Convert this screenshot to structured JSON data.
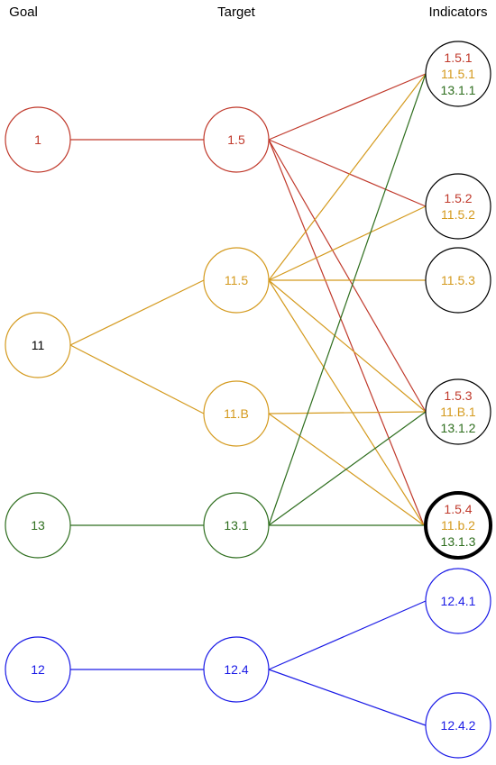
{
  "headers": {
    "goal": "Goal",
    "target": "Target",
    "indicators": "Indicators"
  },
  "colors": {
    "red": "#c0392b",
    "orange": "#d49a1e",
    "green": "#2e6e1e",
    "blue": "#1a1ae6",
    "black": "#000000"
  },
  "goals": [
    {
      "id": "g1",
      "label": "1",
      "color": "#c0392b",
      "text_color": "#c0392b"
    },
    {
      "id": "g11",
      "label": "11",
      "color": "#d49a1e",
      "text_color": "#000000"
    },
    {
      "id": "g13",
      "label": "13",
      "color": "#2e6e1e",
      "text_color": "#2e6e1e"
    },
    {
      "id": "g12",
      "label": "12",
      "color": "#1a1ae6",
      "text_color": "#1a1ae6"
    }
  ],
  "targets": [
    {
      "id": "t1_5",
      "label": "1.5",
      "color": "#c0392b"
    },
    {
      "id": "t11_5",
      "label": "11.5",
      "color": "#d49a1e"
    },
    {
      "id": "t11_B",
      "label": "11.B",
      "color": "#d49a1e"
    },
    {
      "id": "t13_1",
      "label": "13.1",
      "color": "#2e6e1e"
    },
    {
      "id": "t12_4",
      "label": "12.4",
      "color": "#1a1ae6"
    }
  ],
  "indicators": [
    {
      "id": "i1",
      "border": "#000000",
      "bold": false,
      "lines": [
        {
          "text": "1.5.1",
          "color": "#c0392b"
        },
        {
          "text": "11.5.1",
          "color": "#d49a1e"
        },
        {
          "text": "13.1.1",
          "color": "#2e6e1e"
        }
      ]
    },
    {
      "id": "i2",
      "border": "#000000",
      "bold": false,
      "lines": [
        {
          "text": "1.5.2",
          "color": "#c0392b"
        },
        {
          "text": "11.5.2",
          "color": "#d49a1e"
        }
      ]
    },
    {
      "id": "i3",
      "border": "#000000",
      "bold": false,
      "lines": [
        {
          "text": "11.5.3",
          "color": "#d49a1e"
        }
      ]
    },
    {
      "id": "i4",
      "border": "#000000",
      "bold": false,
      "lines": [
        {
          "text": "1.5.3",
          "color": "#c0392b"
        },
        {
          "text": "11.B.1",
          "color": "#d49a1e"
        },
        {
          "text": "13.1.2",
          "color": "#2e6e1e"
        }
      ]
    },
    {
      "id": "i5",
      "border": "#000000",
      "bold": true,
      "lines": [
        {
          "text": "1.5.4",
          "color": "#c0392b"
        },
        {
          "text": "11.b.2",
          "color": "#d49a1e"
        },
        {
          "text": "13.1.3",
          "color": "#2e6e1e"
        }
      ]
    },
    {
      "id": "i6",
      "border": "#1a1ae6",
      "bold": false,
      "lines": [
        {
          "text": "12.4.1",
          "color": "#1a1ae6"
        }
      ]
    },
    {
      "id": "i7",
      "border": "#1a1ae6",
      "bold": false,
      "lines": [
        {
          "text": "12.4.2",
          "color": "#1a1ae6"
        }
      ]
    }
  ],
  "edges": [
    {
      "from": "g1",
      "to": "t1_5",
      "color": "#c0392b"
    },
    {
      "from": "g11",
      "to": "t11_5",
      "color": "#d49a1e"
    },
    {
      "from": "g11",
      "to": "t11_B",
      "color": "#d49a1e"
    },
    {
      "from": "g13",
      "to": "t13_1",
      "color": "#2e6e1e"
    },
    {
      "from": "g12",
      "to": "t12_4",
      "color": "#1a1ae6"
    },
    {
      "from": "t1_5",
      "to": "i1",
      "color": "#c0392b"
    },
    {
      "from": "t1_5",
      "to": "i2",
      "color": "#c0392b"
    },
    {
      "from": "t1_5",
      "to": "i4",
      "color": "#c0392b"
    },
    {
      "from": "t1_5",
      "to": "i5",
      "color": "#c0392b"
    },
    {
      "from": "t11_5",
      "to": "i1",
      "color": "#d49a1e"
    },
    {
      "from": "t11_5",
      "to": "i2",
      "color": "#d49a1e"
    },
    {
      "from": "t11_5",
      "to": "i3",
      "color": "#d49a1e"
    },
    {
      "from": "t11_5",
      "to": "i4",
      "color": "#d49a1e"
    },
    {
      "from": "t11_5",
      "to": "i5",
      "color": "#d49a1e"
    },
    {
      "from": "t11_B",
      "to": "i4",
      "color": "#d49a1e"
    },
    {
      "from": "t11_B",
      "to": "i5",
      "color": "#d49a1e"
    },
    {
      "from": "t13_1",
      "to": "i1",
      "color": "#2e6e1e"
    },
    {
      "from": "t13_1",
      "to": "i4",
      "color": "#2e6e1e"
    },
    {
      "from": "t13_1",
      "to": "i5",
      "color": "#2e6e1e"
    },
    {
      "from": "t12_4",
      "to": "i6",
      "color": "#1a1ae6"
    },
    {
      "from": "t12_4",
      "to": "i7",
      "color": "#1a1ae6"
    }
  ]
}
